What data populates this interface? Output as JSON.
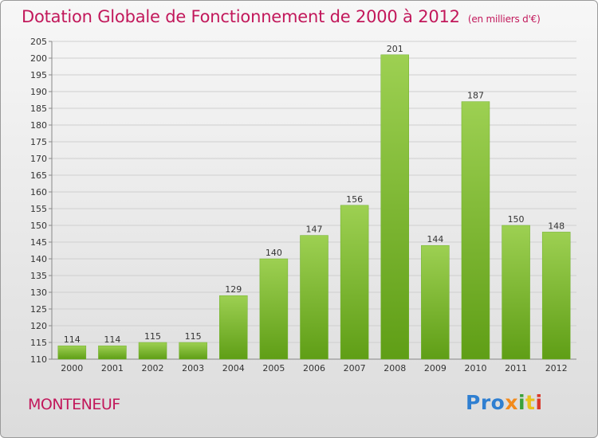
{
  "header": {
    "title": "Dotation Globale de Fonctionnement de 2000 à 2012",
    "subtitle": "(en milliers d'€)"
  },
  "footer": {
    "commune": "MONTENEUF",
    "logo_letters": [
      "Pro",
      "x",
      "i",
      "t",
      "i"
    ]
  },
  "colors": {
    "title": "#c2185b",
    "bar_top": "#9dd052",
    "bar_bottom": "#5f9e16",
    "grid": "#cfcfcf"
  },
  "chart_data": {
    "type": "bar",
    "title": "Dotation Globale de Fonctionnement de 2000 à 2012",
    "subtitle": "(en milliers d'€)",
    "categories": [
      "2000",
      "2001",
      "2002",
      "2003",
      "2004",
      "2005",
      "2006",
      "2007",
      "2008",
      "2009",
      "2010",
      "2011",
      "2012"
    ],
    "values": [
      114,
      114,
      115,
      115,
      129,
      140,
      147,
      156,
      201,
      144,
      187,
      150,
      148
    ],
    "ylim": [
      110,
      205
    ],
    "yticks": [
      110,
      115,
      120,
      125,
      130,
      135,
      140,
      145,
      150,
      155,
      160,
      165,
      170,
      175,
      180,
      185,
      190,
      195,
      200,
      205
    ],
    "grid": true,
    "data_labels": true
  }
}
